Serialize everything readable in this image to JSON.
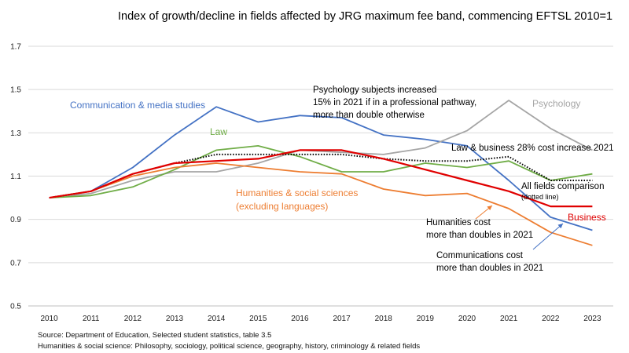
{
  "chart_data": {
    "type": "line",
    "title": "Index of growth/decline in fields affected by JRG maximum fee band, commencing EFTSL  2010=1",
    "xlabel": "",
    "ylabel": "",
    "categories": [
      "2010",
      "2011",
      "2012",
      "2013",
      "2014",
      "2015",
      "2016",
      "2017",
      "2018",
      "2019",
      "2020",
      "2021",
      "2022",
      "2023"
    ],
    "ylim": [
      0.5,
      1.7
    ],
    "yticks": [
      "0.5",
      "0.7",
      "0.9",
      "1.1",
      "1.3",
      "1.5",
      "1.7"
    ],
    "grid": true,
    "legend": "none (direct labels)",
    "series": [
      {
        "name": "Communication & media studies",
        "color": "#4472c4",
        "dash": "solid",
        "values": [
          1.0,
          1.03,
          1.14,
          1.29,
          1.42,
          1.35,
          1.38,
          1.37,
          1.29,
          1.27,
          1.24,
          1.08,
          0.91,
          0.85
        ]
      },
      {
        "name": "Psychology",
        "color": "#a5a5a5",
        "dash": "solid",
        "values": [
          1.0,
          1.02,
          1.08,
          1.12,
          1.12,
          1.16,
          1.22,
          1.21,
          1.2,
          1.23,
          1.31,
          1.45,
          1.32,
          1.22
        ]
      },
      {
        "name": "Law",
        "color": "#70ad47",
        "dash": "solid",
        "values": [
          1.0,
          1.01,
          1.05,
          1.13,
          1.22,
          1.24,
          1.19,
          1.12,
          1.12,
          1.16,
          1.14,
          1.17,
          1.08,
          1.11
        ]
      },
      {
        "name": "Humanities & social sciences (excluding languages)",
        "color": "#ed7d31",
        "dash": "solid",
        "values": [
          1.0,
          1.03,
          1.1,
          1.14,
          1.16,
          1.14,
          1.12,
          1.11,
          1.04,
          1.01,
          1.02,
          0.95,
          0.84,
          0.78
        ]
      },
      {
        "name": "All fields comparison",
        "color": "#000000",
        "dash": "dotted",
        "values": [
          1.0,
          1.03,
          1.11,
          1.16,
          1.2,
          1.2,
          1.2,
          1.2,
          1.18,
          1.17,
          1.17,
          1.19,
          1.08,
          1.08
        ]
      },
      {
        "name": "Business",
        "color": "#e00000",
        "dash": "solid",
        "values": [
          1.0,
          1.03,
          1.11,
          1.16,
          1.17,
          1.18,
          1.22,
          1.22,
          1.18,
          1.13,
          1.08,
          1.03,
          0.96,
          0.96
        ]
      }
    ],
    "labels": {
      "communication": "Communication & media studies",
      "psychology": "Psychology",
      "law": "Law",
      "humanities_1": "Humanities & social sciences",
      "humanities_2": "(excluding languages)",
      "all_fields": "All fields comparison",
      "dotted": "(dotted line)",
      "business": "Business"
    },
    "annotations": {
      "psych_1": "Psychology subjects increased",
      "psych_2": "15% in 2021 if in a professional pathway,",
      "psych_3": "more than double otherwise",
      "lawbiz": "Law & business 28% cost increase 2021",
      "hum_1": "Humanities cost",
      "hum_2": "more than doubles in 2021",
      "comm_1": "Communications cost",
      "comm_2": "more than doubles in 2021"
    },
    "source_1": "Source: Department of Education, Selected student statistics, table 3.5",
    "source_2": "Humanities & social science: Philosophy, sociology, political science, geography, history, criminology & related fields"
  }
}
